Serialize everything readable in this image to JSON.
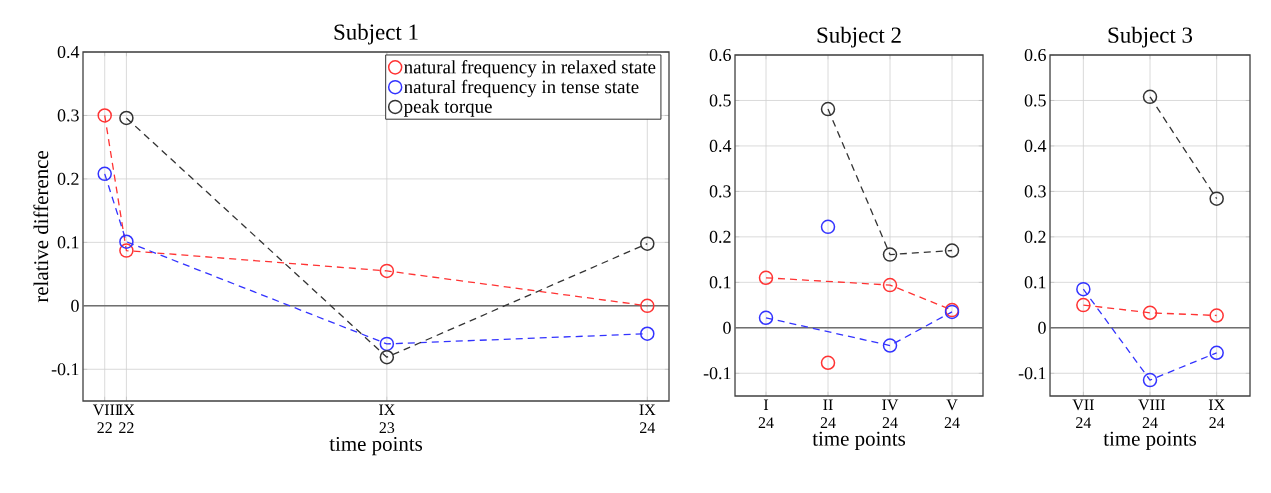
{
  "chart_data": [
    {
      "type": "line",
      "title": "Subject 1",
      "xlabel": "time points",
      "ylabel": "relative difference",
      "x": [
        "2022-08",
        "2022-09",
        "2023-09",
        "2024-09"
      ],
      "xlim": [
        "2022-07",
        "2024-10"
      ],
      "xticks": [
        {
          "value": "2022-08",
          "label": "VIII 22"
        },
        {
          "value": "2022-09",
          "label": "IX 22"
        },
        {
          "value": "2023-09",
          "label": "IX 23"
        },
        {
          "value": "2024-09",
          "label": "IX 24"
        }
      ],
      "ylim": [
        -0.15,
        0.4
      ],
      "yticks": [
        -0.1,
        0,
        0.1,
        0.2,
        0.3,
        0.4
      ],
      "grid": true,
      "legend": "top right",
      "marker": "circle",
      "line_style": "dashed",
      "ref_lines": [
        {
          "axis": "y",
          "value": 0,
          "color": "#707070"
        }
      ],
      "series": [
        {
          "name": "natural frequency in relaxed state",
          "color": "#ff3333",
          "values": [
            0.3,
            0.087,
            0.055,
            0
          ]
        },
        {
          "name": "natural frequency in tense state",
          "color": "#3333ff",
          "values": [
            0.208,
            0.101,
            -0.06,
            -0.044
          ]
        },
        {
          "name": "peak torque",
          "color": "#333333",
          "values": [
            null,
            0.296,
            -0.081,
            0.098
          ]
        }
      ]
    },
    {
      "type": "line",
      "title": "Subject 2",
      "xlabel": "time points",
      "categories": [
        "I 24",
        "II 24",
        "IV 24",
        "V 24"
      ],
      "ylim": [
        -0.15,
        0.6
      ],
      "yticks": [
        -0.1,
        0,
        0.1,
        0.2,
        0.3,
        0.4,
        0.5,
        0.6
      ],
      "grid": true,
      "marker": "circle",
      "line_style": "dashed",
      "ref_lines": [
        {
          "axis": "y",
          "value": 0,
          "color": "#707070"
        }
      ],
      "series": [
        {
          "color": "#ff3333",
          "values": [
            0.11,
            null,
            0.094,
            0.039
          ]
        },
        {
          "color": "#3333ff",
          "values": [
            0.022,
            null,
            -0.039,
            0.035
          ]
        },
        {
          "color": "#333333",
          "values": [
            null,
            0.481,
            0.161,
            0.17
          ]
        },
        {
          "type": "scatter",
          "color": "#ff3333",
          "values": [
            null,
            -0.077,
            null,
            null
          ]
        },
        {
          "type": "scatter",
          "color": "#3333ff",
          "values": [
            null,
            0.222,
            null,
            null
          ]
        }
      ]
    },
    {
      "type": "line",
      "title": "Subject 3",
      "xlabel": "time points",
      "categories": [
        "VII 24",
        "VIII 24",
        "IX 24"
      ],
      "ylim": [
        -0.15,
        0.6
      ],
      "yticks": [
        -0.1,
        0,
        0.1,
        0.2,
        0.3,
        0.4,
        0.5,
        0.6
      ],
      "grid": true,
      "marker": "circle",
      "line_style": "dashed",
      "ref_lines": [
        {
          "axis": "y",
          "value": 0,
          "color": "#707070"
        }
      ],
      "series": [
        {
          "color": "#ff3333",
          "values": [
            0.05,
            0.033,
            0.027
          ]
        },
        {
          "color": "#3333ff",
          "values": [
            0.085,
            -0.115,
            -0.055
          ]
        },
        {
          "color": "#333333",
          "values": [
            null,
            0.508,
            0.284
          ]
        }
      ]
    }
  ]
}
